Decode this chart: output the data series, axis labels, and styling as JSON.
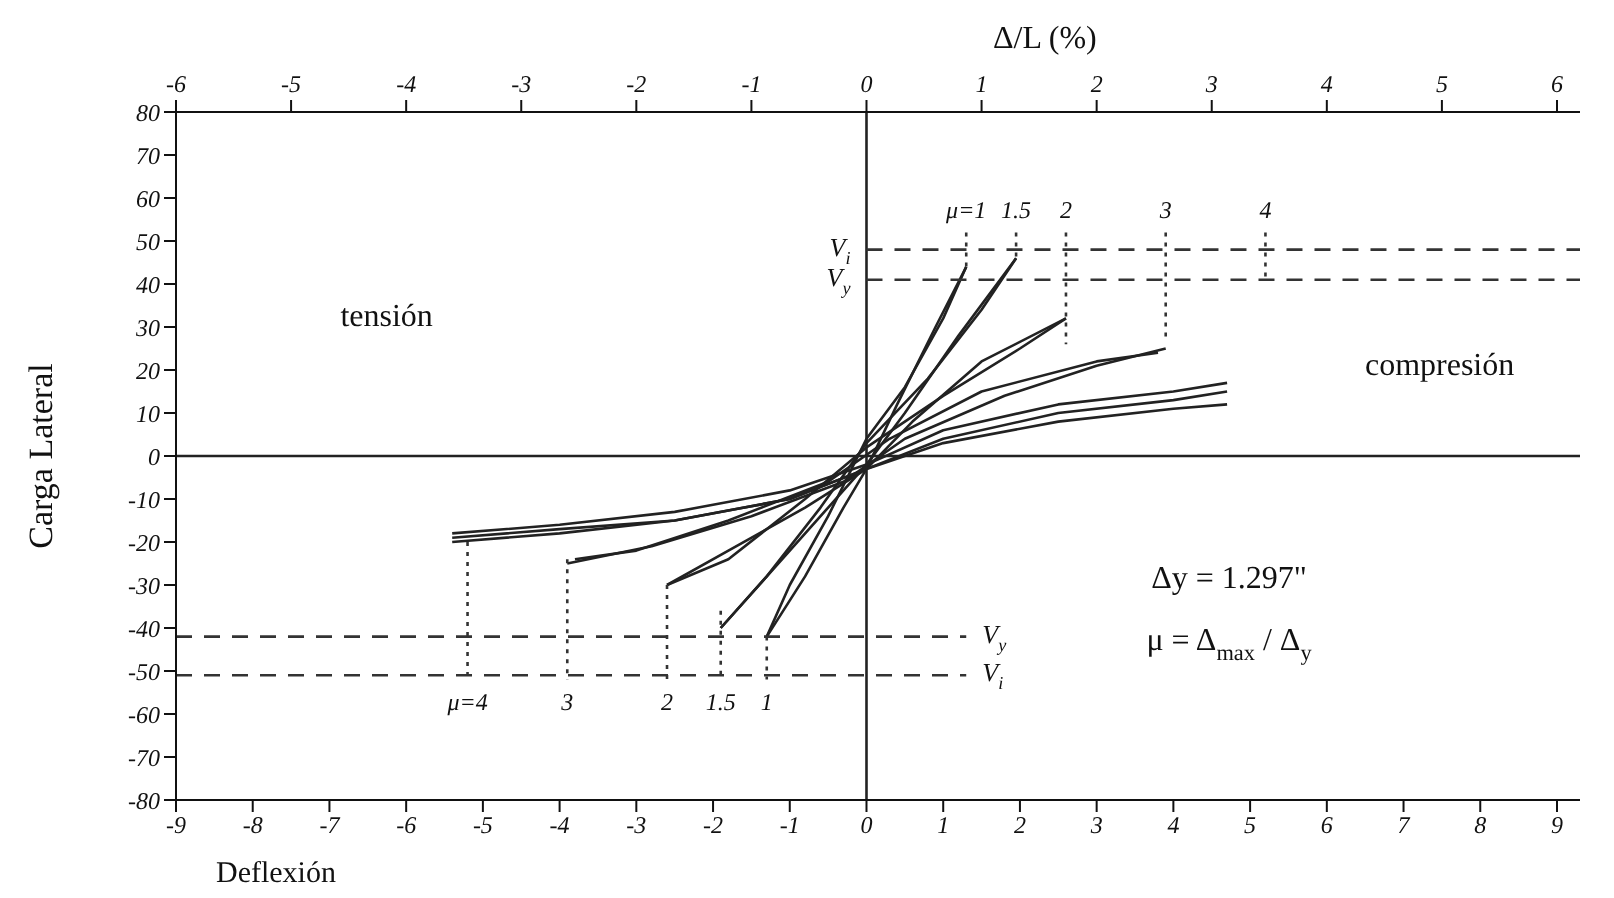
{
  "chart_data": {
    "type": "line",
    "xlabel": "Deflexión",
    "ylabel": "Carga Lateral",
    "x2label": "Δ/L (%)",
    "xlim": [
      -9,
      9.3
    ],
    "xticks": [
      -9,
      -8,
      -7,
      -6,
      -5,
      -4,
      -3,
      -2,
      -1,
      0,
      1,
      2,
      3,
      4,
      5,
      6,
      7,
      8,
      9
    ],
    "x2lim": [
      -6,
      6.2
    ],
    "x2ticks": [
      -6,
      -5,
      -4,
      -3,
      -2,
      -1,
      0,
      1,
      2,
      3,
      4,
      5,
      6
    ],
    "ylim": [
      -80,
      80
    ],
    "yticks": [
      -80,
      -70,
      -60,
      -50,
      -40,
      -30,
      -20,
      -10,
      0,
      10,
      20,
      30,
      40,
      50,
      60,
      70,
      80
    ],
    "grid": false,
    "legend": false,
    "marker": "none",
    "series": [
      {
        "color": "#222222",
        "x": [
          -1.3,
          -0.8,
          -0.3,
          0,
          0.4,
          0.9,
          1.3
        ],
        "values": [
          -42,
          -28,
          -12,
          -3,
          12,
          30,
          44
        ]
      },
      {
        "color": "#222222",
        "x": [
          -1.3,
          -1.0,
          -0.5,
          0,
          0.5,
          1.0,
          1.3
        ],
        "values": [
          -42,
          -30,
          -14,
          4,
          16,
          32,
          44
        ]
      },
      {
        "color": "#222222",
        "x": [
          -1.9,
          -1.2,
          -0.5,
          0,
          0.5,
          1.2,
          1.95
        ],
        "values": [
          -40,
          -26,
          -12,
          -2,
          10,
          28,
          46
        ]
      },
      {
        "color": "#222222",
        "x": [
          -1.9,
          -1.3,
          -0.6,
          0,
          0.8,
          1.5,
          1.95
        ],
        "values": [
          -40,
          -28,
          -12,
          3,
          18,
          34,
          46
        ]
      },
      {
        "color": "#222222",
        "x": [
          -2.6,
          -1.8,
          -0.8,
          0,
          0.6,
          1.5,
          2.6
        ],
        "values": [
          -30,
          -22,
          -12,
          -3,
          8,
          22,
          32
        ]
      },
      {
        "color": "#222222",
        "x": [
          -2.6,
          -1.8,
          -0.8,
          0,
          1.0,
          2.0,
          2.6
        ],
        "values": [
          -30,
          -24,
          -10,
          2,
          14,
          25,
          32
        ]
      },
      {
        "color": "#222222",
        "x": [
          -3.9,
          -2.8,
          -1.5,
          -0.3,
          0.5,
          1.8,
          3.0,
          3.9
        ],
        "values": [
          -25,
          -21,
          -14,
          -6,
          4,
          14,
          21,
          25
        ]
      },
      {
        "color": "#222222",
        "x": [
          -3.8,
          -3.0,
          -1.8,
          -0.5,
          0.3,
          1.5,
          3.0,
          3.8
        ],
        "values": [
          -24,
          -22,
          -15,
          -6,
          4,
          15,
          22,
          24
        ]
      },
      {
        "color": "#222222",
        "x": [
          -5.4,
          -4,
          -2.5,
          -1,
          0,
          1,
          2.5,
          4,
          4.7
        ],
        "values": [
          -18,
          -16,
          -13,
          -8,
          -2,
          6,
          12,
          15,
          17
        ]
      },
      {
        "color": "#222222",
        "x": [
          -5.4,
          -4,
          -2.5,
          -1,
          0,
          1,
          2.5,
          4,
          4.7
        ],
        "values": [
          -19,
          -17,
          -15,
          -10,
          -3,
          4,
          10,
          13,
          15
        ]
      },
      {
        "color": "#222222",
        "x": [
          -5.4,
          -4,
          -2.5,
          -1,
          0,
          1,
          2.5,
          4,
          4.7
        ],
        "values": [
          -20,
          -18,
          -15,
          -10,
          -3,
          3,
          8,
          11,
          12
        ]
      },
      {
        "color": "#222222",
        "line_style": "solid",
        "x": [
          -9,
          9.3
        ],
        "values": [
          0,
          0
        ]
      },
      {
        "color": "#222222",
        "line_style": "solid",
        "x": [
          0,
          0
        ],
        "values": [
          -80,
          80
        ]
      },
      {
        "color": "#333333",
        "line_style": "dashed",
        "x": [
          0,
          9.3
        ],
        "values": [
          48,
          48
        ]
      },
      {
        "color": "#333333",
        "line_style": "dashed",
        "x": [
          0,
          9.3
        ],
        "values": [
          41,
          41
        ]
      },
      {
        "color": "#333333",
        "line_style": "dashed",
        "x": [
          -9,
          1.3
        ],
        "values": [
          -42,
          -42
        ]
      },
      {
        "color": "#333333",
        "line_style": "dashed",
        "x": [
          -9,
          1.3
        ],
        "values": [
          -51,
          -51
        ]
      },
      {
        "color": "#333333",
        "line_style": "dotted",
        "x": [
          1.3,
          1.3
        ],
        "values": [
          52,
          44
        ]
      },
      {
        "color": "#333333",
        "line_style": "dotted",
        "x": [
          1.95,
          1.95
        ],
        "values": [
          52,
          46
        ]
      },
      {
        "color": "#333333",
        "line_style": "dotted",
        "x": [
          2.6,
          2.6
        ],
        "values": [
          52,
          26
        ]
      },
      {
        "color": "#333333",
        "line_style": "dotted",
        "x": [
          3.9,
          3.9
        ],
        "values": [
          52,
          27
        ]
      },
      {
        "color": "#333333",
        "line_style": "dotted",
        "x": [
          5.2,
          5.2
        ],
        "values": [
          52,
          41
        ]
      },
      {
        "color": "#333333",
        "line_style": "dotted",
        "x": [
          -5.2,
          -5.2
        ],
        "values": [
          -20,
          -52
        ]
      },
      {
        "color": "#333333",
        "line_style": "dotted",
        "x": [
          -3.9,
          -3.9
        ],
        "values": [
          -24,
          -52
        ]
      },
      {
        "color": "#333333",
        "line_style": "dotted",
        "x": [
          -2.6,
          -2.6
        ],
        "values": [
          -30,
          -52
        ]
      },
      {
        "color": "#333333",
        "line_style": "dotted",
        "x": [
          -1.9,
          -1.9
        ],
        "values": [
          -36,
          -52
        ]
      },
      {
        "color": "#333333",
        "line_style": "dotted",
        "x": [
          -1.3,
          -1.3
        ],
        "values": [
          -42,
          -52
        ]
      }
    ],
    "annotations": [
      "tensión",
      "compresión",
      "Δy = 1.297\"",
      "μ = Δ$_{max}$ / Δ$_{y}$",
      "μ=1",
      "1.5",
      "2",
      "3",
      "4",
      "μ=4",
      "3",
      "2",
      "1.5",
      "1",
      "V$_{i}$",
      "V$_{y}$",
      "V$_{y}$",
      "V$_{i}$"
    ]
  }
}
